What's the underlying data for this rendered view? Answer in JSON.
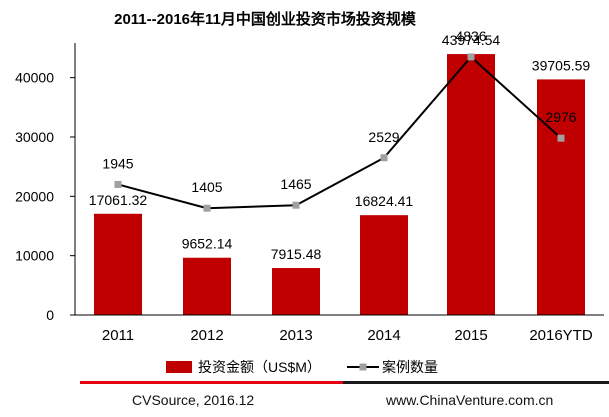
{
  "chart_data": {
    "type": "bar",
    "title": "2011--2016年11月中国创业投资市场投资规模",
    "categories": [
      "2011",
      "2012",
      "2013",
      "2014",
      "2015",
      "2016YTD"
    ],
    "ylim": [
      0,
      45000
    ],
    "yticks": [
      0,
      10000,
      20000,
      30000,
      40000
    ],
    "series": [
      {
        "name": "投资金额（US$M）",
        "kind": "bar",
        "color": "#c00000",
        "values": [
          17061.32,
          9652.14,
          7915.48,
          16824.41,
          43974.54,
          39705.59
        ],
        "labels": [
          "17061.32",
          "9652.14",
          "7915.48",
          "16824.41",
          "43974.54",
          "39705.59"
        ]
      },
      {
        "name": "案例数量",
        "kind": "line",
        "color": "#000000",
        "marker_color": "#a0a0a0",
        "values": [
          1945,
          1405,
          1465,
          2529,
          4836,
          2976
        ],
        "labels": [
          "1945",
          "1405",
          "1465",
          "2529",
          "4836",
          "2976"
        ]
      }
    ],
    "line_positions_on_bar_axis": [
      22000,
      18000,
      18500,
      26500,
      43500,
      29800
    ],
    "grid": false,
    "legend_position": "bottom"
  },
  "footer": {
    "source": "CVSource, 2016.12",
    "site": "www.ChinaVenture.com.cn"
  }
}
